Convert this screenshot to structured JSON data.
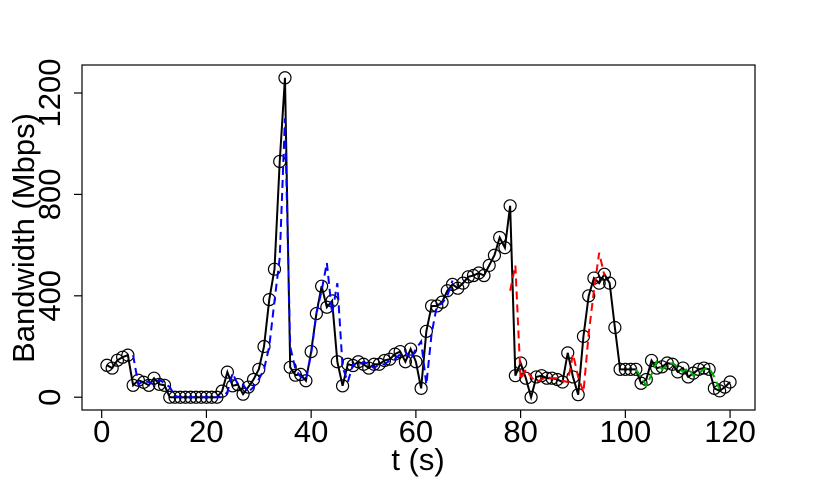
{
  "chart_data": {
    "type": "line",
    "xlabel": "t (s)",
    "ylabel": "Bandwidth (Mbps)",
    "xlim": [
      -3.76,
      124.76
    ],
    "ylim": [
      -50.4,
      1310.4
    ],
    "xticks": [
      0,
      20,
      40,
      60,
      80,
      100,
      120
    ],
    "yticks": [
      0,
      400,
      800,
      1200
    ],
    "series": [
      {
        "color": "#000000",
        "linestyle": "solid",
        "marker": "circle",
        "x": [
          1,
          2,
          3,
          4,
          5,
          6,
          7,
          8,
          9,
          10,
          11,
          12,
          13,
          14,
          15,
          16,
          17,
          18,
          19,
          20,
          21,
          22,
          23,
          24,
          25,
          26,
          27,
          28,
          29,
          30,
          31,
          32,
          33,
          34,
          35,
          36,
          37,
          38,
          39,
          40,
          41,
          42,
          43,
          44,
          45,
          46,
          47,
          48,
          49,
          50,
          51,
          52,
          53,
          54,
          55,
          56,
          57,
          58,
          59,
          60,
          61,
          62,
          63,
          64,
          65,
          66,
          67,
          68,
          69,
          70,
          71,
          72,
          73,
          74,
          75,
          76,
          77,
          78,
          79,
          80,
          81,
          82,
          83,
          84,
          85,
          86,
          87,
          88,
          89,
          90,
          91,
          92,
          93,
          94,
          95,
          96,
          97,
          98,
          99,
          100,
          101,
          102,
          103,
          104,
          105,
          106,
          107,
          108,
          109,
          110,
          111,
          112,
          113,
          114,
          115,
          116,
          117,
          118,
          119,
          120
        ],
        "values": [
          126,
          115,
          146,
          158,
          166,
          47,
          67,
          59,
          47,
          75,
          51,
          47,
          0,
          0,
          0,
          0,
          0,
          0,
          0,
          0,
          0,
          0,
          24,
          99,
          45,
          50,
          12,
          40,
          70,
          110,
          200,
          385,
          505,
          930,
          1260,
          118,
          87,
          90,
          65,
          180,
          330,
          438,
          355,
          380,
          140,
          45,
          130,
          125,
          140,
          130,
          115,
          130,
          130,
          145,
          150,
          170,
          180,
          140,
          190,
          140,
          35,
          260,
          360,
          360,
          375,
          420,
          445,
          430,
          450,
          475,
          480,
          490,
          480,
          520,
          560,
          630,
          590,
          755,
          85,
          135,
          75,
          0,
          80,
          85,
          75,
          75,
          70,
          60,
          175,
          80,
          10,
          240,
          400,
          470,
          450,
          485,
          450,
          275,
          110,
          110,
          110,
          110,
          55,
          70,
          145,
          115,
          120,
          135,
          130,
          100,
          115,
          80,
          95,
          110,
          115,
          110,
          35,
          25,
          40,
          60
        ]
      },
      {
        "color": "#0000ff",
        "linestyle": "dashed",
        "marker": "none",
        "x": [
          6,
          7,
          8,
          9,
          10,
          11,
          12,
          13,
          14,
          15,
          16,
          17,
          18,
          19,
          20,
          21,
          22,
          23,
          24,
          25,
          26,
          27,
          28,
          29,
          30,
          31,
          32,
          33,
          34,
          35,
          36,
          37,
          38,
          39,
          40,
          41,
          42,
          43,
          44,
          45,
          46,
          47,
          48,
          49,
          50,
          51,
          52,
          53,
          54,
          55,
          56,
          57,
          58,
          59,
          60,
          61,
          62,
          63,
          64,
          65,
          66,
          67
        ],
        "values": [
          166,
          50,
          65,
          60,
          50,
          70,
          55,
          40,
          5,
          0,
          0,
          0,
          0,
          0,
          0,
          0,
          0,
          0,
          20,
          95,
          50,
          50,
          20,
          40,
          70,
          110,
          200,
          380,
          550,
          1100,
          200,
          110,
          80,
          70,
          170,
          330,
          420,
          530,
          330,
          450,
          120,
          60,
          130,
          125,
          140,
          130,
          115,
          130,
          130,
          145,
          150,
          170,
          180,
          150,
          190,
          220,
          50,
          250,
          360,
          370,
          400,
          460
        ]
      },
      {
        "color": "#ff0000",
        "linestyle": "dashed",
        "marker": "none",
        "x": [
          78,
          79,
          80,
          81,
          82,
          83,
          84,
          85,
          86,
          87,
          88,
          89,
          90,
          91,
          92,
          93,
          94,
          95,
          96
        ],
        "values": [
          420,
          520,
          70,
          110,
          80,
          60,
          70,
          80,
          75,
          75,
          65,
          60,
          170,
          80,
          20,
          250,
          420,
          570,
          480
        ]
      },
      {
        "color": "#00b000",
        "linestyle": "dashed",
        "marker": "none",
        "x": [
          102,
          103,
          104,
          105,
          106,
          107,
          108,
          109,
          110,
          111,
          112,
          113,
          114,
          115,
          116,
          117,
          118
        ],
        "values": [
          110,
          80,
          45,
          90,
          140,
          110,
          125,
          135,
          120,
          100,
          115,
          85,
          95,
          110,
          115,
          80,
          30
        ]
      }
    ]
  }
}
